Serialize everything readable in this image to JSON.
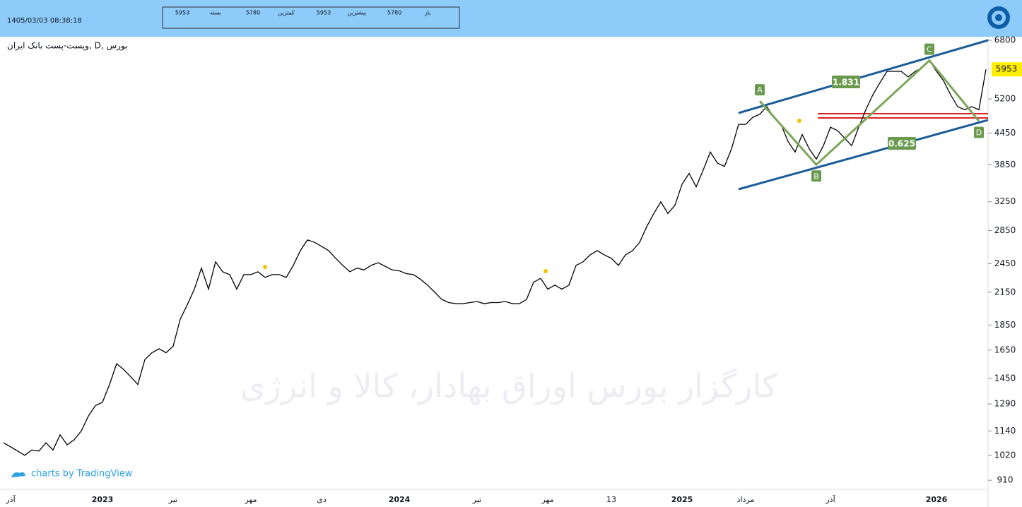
{
  "header": {
    "datetime": "1405/03/03 08:38:18",
    "quote": [
      {
        "value": "5953",
        "label": "بسته"
      },
      {
        "value": "5780",
        "label": "کمترین"
      },
      {
        "value": "5953",
        "label": "بیشترین"
      },
      {
        "value": "5780",
        "label": "باز"
      }
    ]
  },
  "chart_data": {
    "type": "line",
    "title": "وپست-پست بانک ایران, D, بورس",
    "watermark": "کارگزار بورس اوراق بهادار، کالا و انرژی",
    "credit": "charts by TradingView",
    "log_scale": true,
    "grid": false,
    "color": "#000000",
    "categories": [
      null,
      "آذر",
      null,
      null,
      null,
      null,
      null,
      null,
      null,
      null,
      null,
      null,
      null,
      null,
      "2023",
      null,
      null,
      null,
      null,
      null,
      null,
      null,
      null,
      null,
      "تیر",
      null,
      null,
      null,
      null,
      null,
      null,
      null,
      null,
      null,
      null,
      "مهر",
      null,
      null,
      null,
      null,
      null,
      null,
      null,
      null,
      null,
      "دی",
      null,
      null,
      null,
      null,
      null,
      null,
      null,
      null,
      null,
      null,
      "2024",
      null,
      null,
      null,
      null,
      null,
      null,
      null,
      null,
      null,
      null,
      "تیر",
      null,
      null,
      null,
      null,
      null,
      null,
      null,
      null,
      null,
      "مهر",
      null,
      null,
      null,
      null,
      null,
      null,
      null,
      null,
      "13",
      null,
      null,
      null,
      null,
      null,
      null,
      null,
      null,
      null,
      "2025",
      null,
      null,
      null,
      null,
      null,
      null,
      null,
      null,
      "مرداد",
      null,
      null,
      null,
      null,
      null,
      null,
      null,
      null,
      null,
      null,
      null,
      "آذر",
      null,
      null,
      null,
      null,
      null,
      null,
      null,
      null,
      null,
      null,
      null,
      null,
      null,
      null,
      "2026",
      null,
      null,
      null,
      null,
      null,
      null,
      null
    ],
    "values": [
      1080,
      1060,
      1040,
      1020,
      1045,
      1040,
      1080,
      1045,
      1120,
      1070,
      1095,
      1140,
      1220,
      1280,
      1300,
      1410,
      1550,
      1510,
      1460,
      1410,
      1580,
      1630,
      1660,
      1630,
      1680,
      1900,
      2030,
      2180,
      2400,
      2180,
      2470,
      2360,
      2330,
      2180,
      2330,
      2330,
      2360,
      2300,
      2330,
      2330,
      2300,
      2430,
      2600,
      2730,
      2700,
      2650,
      2600,
      2510,
      2430,
      2360,
      2400,
      2380,
      2430,
      2460,
      2420,
      2380,
      2370,
      2340,
      2330,
      2280,
      2220,
      2150,
      2080,
      2050,
      2040,
      2040,
      2050,
      2060,
      2040,
      2050,
      2050,
      2060,
      2040,
      2040,
      2080,
      2250,
      2290,
      2180,
      2220,
      2180,
      2220,
      2430,
      2470,
      2550,
      2600,
      2550,
      2510,
      2430,
      2550,
      2600,
      2700,
      2900,
      3080,
      3250,
      3080,
      3200,
      3520,
      3700,
      3480,
      3760,
      4080,
      3880,
      3820,
      4140,
      4630,
      4630,
      4780,
      4850,
      5020,
      4780,
      4630,
      4280,
      4080,
      4420,
      4140,
      3950,
      4200,
      4570,
      4500,
      4350,
      4200,
      4570,
      4950,
      5300,
      5600,
      5900,
      5900,
      5900,
      5750,
      5900,
      6000,
      6200,
      5900,
      5650,
      5300,
      5020,
      4950,
      5020,
      4950,
      5953
    ],
    "ylim": [
      873,
      6911
    ],
    "yticks": [
      910,
      1020,
      1140,
      1290,
      1450,
      1650,
      1850,
      2150,
      2450,
      2850,
      3250,
      3850,
      4450,
      5200,
      6800
    ],
    "last_price": 5953,
    "pattern": [
      {
        "label": "A",
        "x": 107,
        "y": 5150
      },
      {
        "label": "B",
        "x": 115,
        "y": 3850
      },
      {
        "label": "C",
        "x": 131,
        "y": 6200
      },
      {
        "label": "D",
        "x": 138,
        "y": 4700
      }
    ],
    "ratios": [
      "1.831",
      "0.625"
    ]
  }
}
